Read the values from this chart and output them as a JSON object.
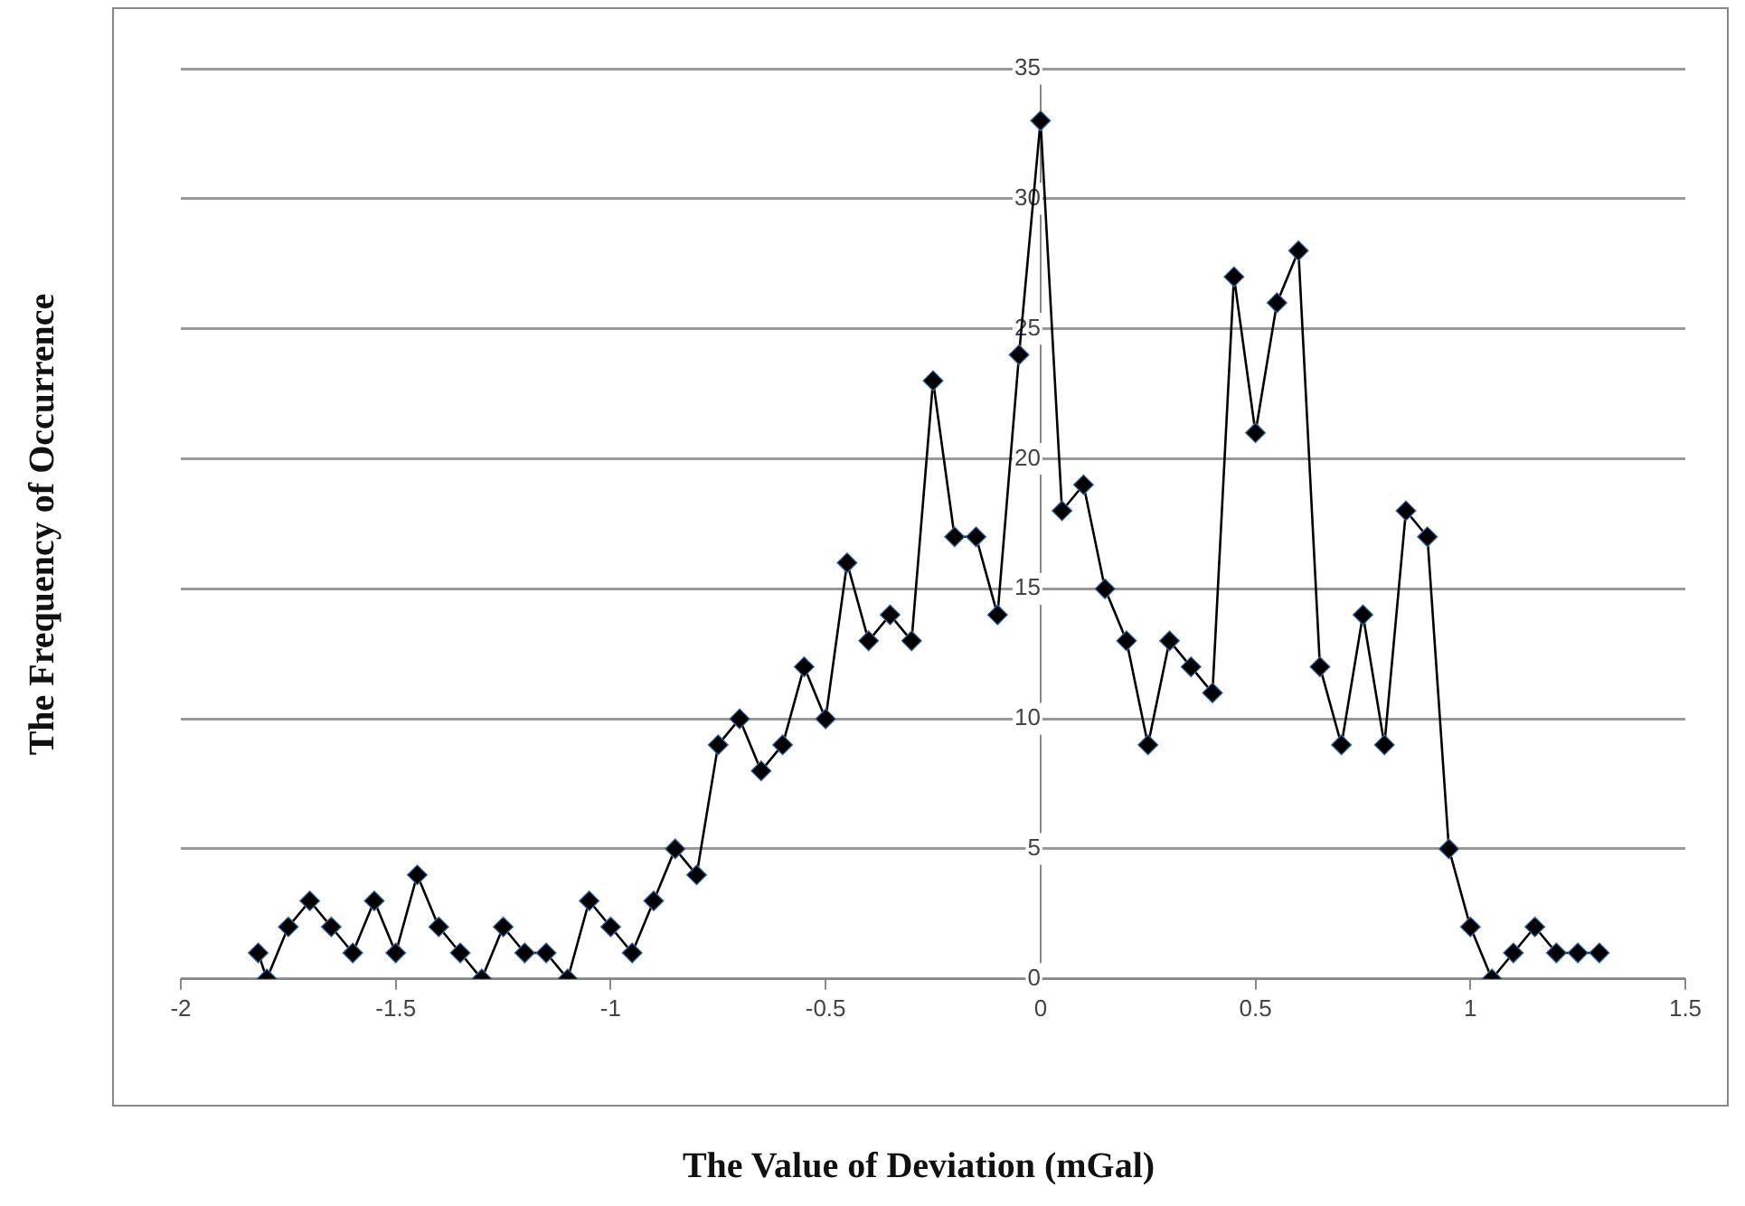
{
  "chart_data": {
    "type": "line",
    "xlabel": "The Value of Deviation (mGal)",
    "ylabel": "The Frequency of Occurrence",
    "x": [
      -1.82,
      -1.8,
      -1.75,
      -1.7,
      -1.65,
      -1.6,
      -1.55,
      -1.5,
      -1.45,
      -1.4,
      -1.35,
      -1.3,
      -1.25,
      -1.2,
      -1.15,
      -1.1,
      -1.05,
      -1.0,
      -0.95,
      -0.9,
      -0.85,
      -0.8,
      -0.75,
      -0.7,
      -0.65,
      -0.6,
      -0.55,
      -0.5,
      -0.45,
      -0.4,
      -0.35,
      -0.3,
      -0.25,
      -0.2,
      -0.15,
      -0.1,
      -0.05,
      0,
      0.05,
      0.1,
      0.15,
      0.2,
      0.25,
      0.3,
      0.35,
      0.4,
      0.45,
      0.5,
      0.55,
      0.6,
      0.65,
      0.7,
      0.75,
      0.8,
      0.85,
      0.9,
      0.95,
      1.0,
      1.05,
      1.1,
      1.15,
      1.2,
      1.25,
      1.3
    ],
    "series": [
      {
        "color": "#000000",
        "values": [
          1,
          0,
          2,
          3,
          2,
          1,
          3,
          1,
          4,
          2,
          1,
          0,
          2,
          1,
          1,
          0,
          3,
          2,
          1,
          3,
          5,
          4,
          9,
          10,
          8,
          9,
          12,
          10,
          16,
          13,
          14,
          13,
          23,
          17,
          17,
          14,
          24,
          33,
          18,
          19,
          15,
          13,
          9,
          13,
          12,
          11,
          27,
          21,
          26,
          28,
          12,
          9,
          14,
          9,
          18,
          17,
          5,
          2,
          0,
          1,
          2,
          1,
          1,
          1
        ]
      }
    ],
    "xlim": [
      -2,
      1.5
    ],
    "xticks": [
      -2,
      -1.5,
      -1,
      -0.5,
      0,
      0.5,
      1,
      1.5
    ],
    "ylim": [
      0,
      35
    ],
    "yticks": [
      0,
      5,
      10,
      15,
      20,
      25,
      30,
      35
    ],
    "grid": "y",
    "legend": false,
    "marker": "diamond",
    "line_style": "solid"
  }
}
